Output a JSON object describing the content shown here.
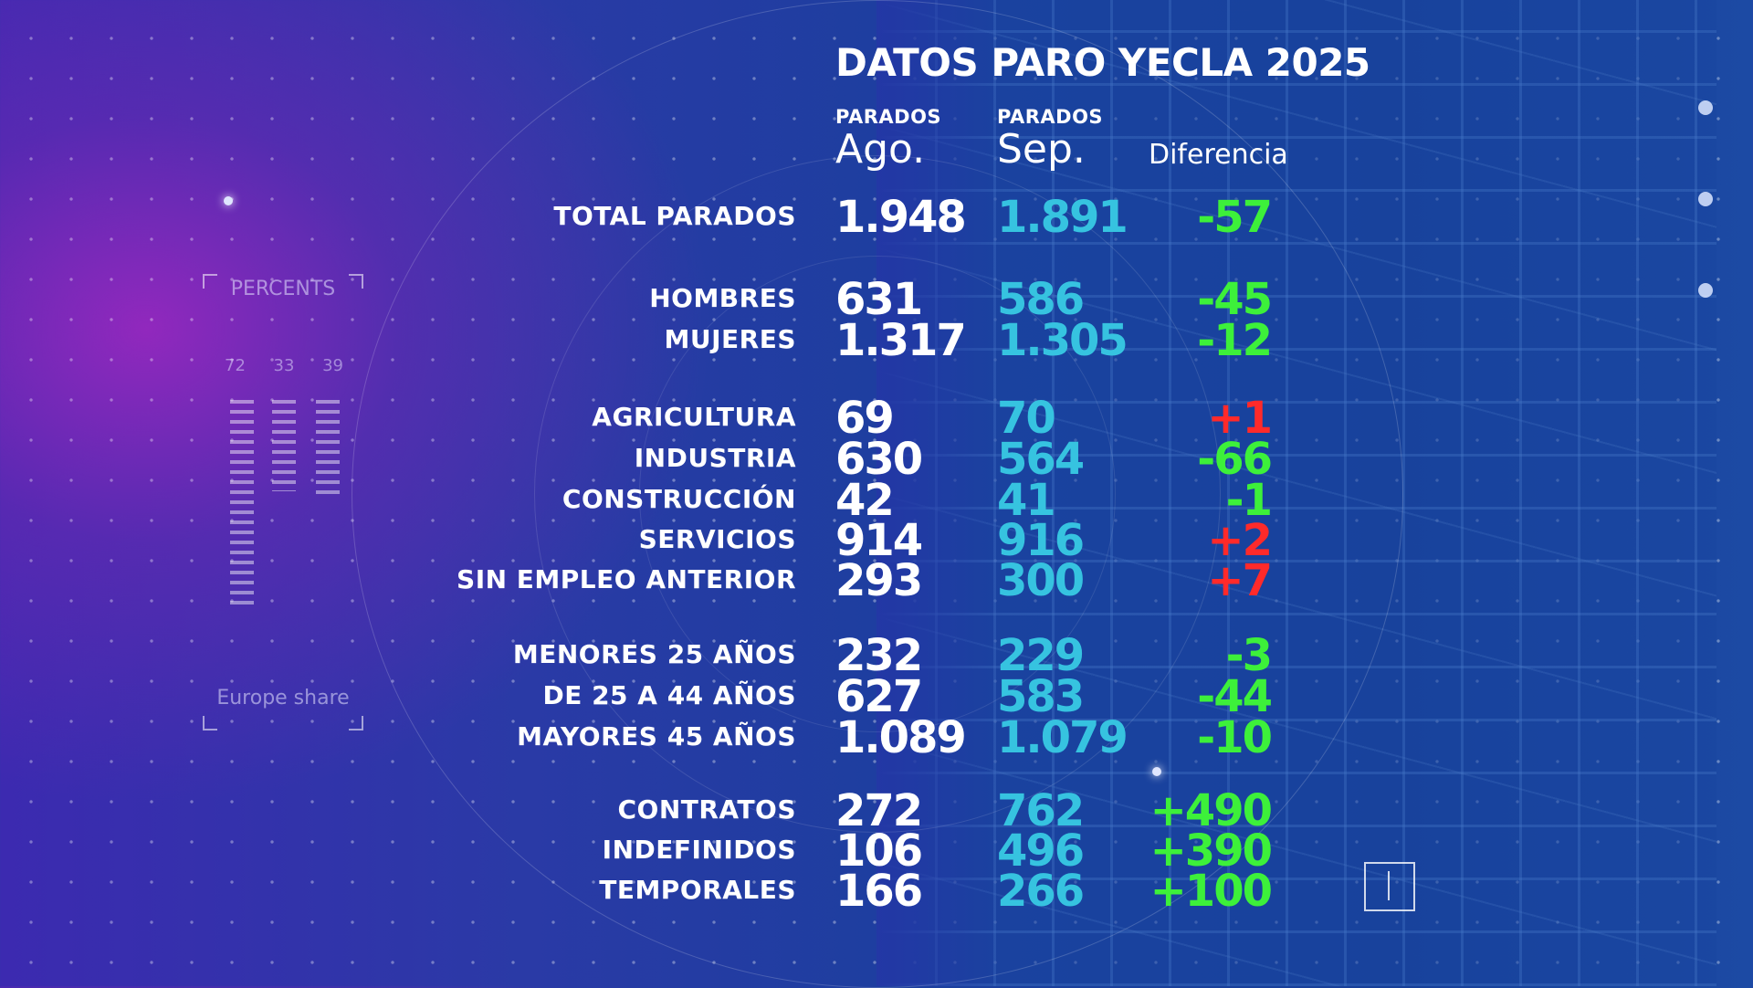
{
  "title": "DATOS PARO YECLA 2025",
  "headers": {
    "col1_small": "PARADOS",
    "col1_big": "Ago.",
    "col2_small": "PARADOS",
    "col2_big": "Sep.",
    "col3": "Diferencia"
  },
  "rows": [
    {
      "label": "TOTAL PARADOS",
      "ago": "1.948",
      "sep": "1.891",
      "diff": "-57"
    },
    {
      "label": "HOMBRES",
      "ago": "631",
      "sep": "586",
      "diff": "-45"
    },
    {
      "label": "MUJERES",
      "ago": "1.317",
      "sep": "1.305",
      "diff": "-12"
    },
    {
      "label": "AGRICULTURA",
      "ago": "69",
      "sep": "70",
      "diff": "+1"
    },
    {
      "label": "INDUSTRIA",
      "ago": "630",
      "sep": "564",
      "diff": "-66"
    },
    {
      "label": "CONSTRUCCIÓN",
      "ago": "42",
      "sep": "41",
      "diff": "-1"
    },
    {
      "label": "SERVICIOS",
      "ago": "914",
      "sep": "916",
      "diff": "+2"
    },
    {
      "label": "SIN EMPLEO ANTERIOR",
      "ago": "293",
      "sep": "300",
      "diff": "+7"
    },
    {
      "label": "MENORES  25 AÑOS",
      "ago": "232",
      "sep": "229",
      "diff": "-3"
    },
    {
      "label": "DE 25 A 44 AÑOS",
      "ago": "627",
      "sep": "583",
      "diff": "-44"
    },
    {
      "label": "MAYORES  45 AÑOS",
      "ago": "1.089",
      "sep": "1.079",
      "diff": "-10"
    },
    {
      "label": "CONTRATOS",
      "ago": "272",
      "sep": "762",
      "diff": "+490"
    },
    {
      "label": "INDEFINIDOS",
      "ago": "106",
      "sep": "496",
      "diff": "+390"
    },
    {
      "label": "TEMPORALES",
      "ago": "166",
      "sep": "266",
      "diff": "+100"
    }
  ],
  "widget": {
    "title": "PERCENTS",
    "values": [
      "72",
      "33",
      "39"
    ],
    "footer": "Europe share"
  },
  "colors": {
    "sep_value": "#36c3e0",
    "decrease": "#3df03a",
    "increase": "#ff2a2a"
  }
}
